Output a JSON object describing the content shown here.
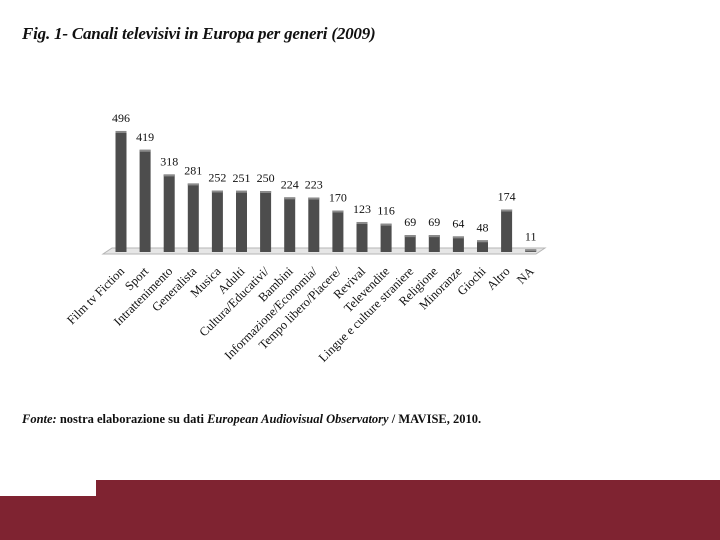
{
  "figure": {
    "title": "Fig. 1- Canali televisivi in Europa per generi (2009)"
  },
  "source": {
    "prefix": "Fonte:",
    "text1": " nostra elaborazione su dati ",
    "italic": "European Audiovisual Observatory",
    "text2": " / MAVISE, 2010."
  },
  "colors": {
    "bar": "#4d4d4d",
    "bar_light": "#8a8a8a",
    "floor": "#e6e6e6",
    "band": "#7f2331"
  },
  "chart_data": {
    "type": "bar",
    "title": "Fig. 1- Canali televisivi in Europa per generi (2009)",
    "xlabel": "",
    "ylabel": "",
    "ylim": [
      0,
      500
    ],
    "grid": false,
    "categories": [
      "Film tv Fiction",
      "Sport",
      "Intrattenimento",
      "Generalista",
      "Musica",
      "Adulti",
      "Cultura/Educativi/",
      "Bambini",
      "Informazione/Economia/",
      "Tempo libero/Piacere/",
      "Revival",
      "Televendite",
      "Lingue e culture straniere",
      "Religione",
      "Minoranze",
      "Giochi",
      "Altro",
      "NA"
    ],
    "values": [
      496,
      419,
      318,
      281,
      252,
      251,
      250,
      224,
      223,
      170,
      123,
      116,
      69,
      69,
      64,
      48,
      174,
      11
    ]
  }
}
